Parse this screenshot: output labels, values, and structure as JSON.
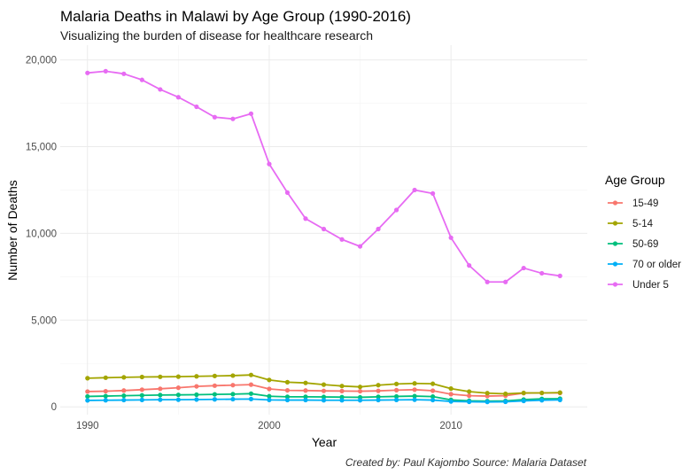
{
  "chart_data": {
    "type": "line",
    "title": "Malaria Deaths in Malawi by Age Group (1990-2016)",
    "subtitle": "Visualizing the burden of disease for healthcare research",
    "xlabel": "Year",
    "ylabel": "Number of Deaths",
    "caption": "Created by: Paul Kajombo Source: Malaria Dataset",
    "legend_title": "Age Group",
    "legend_position": "right",
    "grid": true,
    "xlim": [
      1988.5,
      2017.5
    ],
    "ylim": [
      -450,
      20850
    ],
    "x_ticks": [
      1990,
      2000,
      2010
    ],
    "y_ticks": [
      0,
      5000,
      10000,
      15000,
      20000
    ],
    "y_tick_labels": [
      "0",
      "5,000",
      "10,000",
      "15,000",
      "20,000"
    ],
    "x": [
      1990,
      1991,
      1992,
      1993,
      1994,
      1995,
      1996,
      1997,
      1998,
      1999,
      2000,
      2001,
      2002,
      2003,
      2004,
      2005,
      2006,
      2007,
      2008,
      2009,
      2010,
      2011,
      2012,
      2013,
      2014,
      2015,
      2016
    ],
    "series": [
      {
        "name": "15-49",
        "color": "#F8766D",
        "values": [
          880,
          900,
          940,
          990,
          1040,
          1100,
          1180,
          1220,
          1250,
          1280,
          1030,
          950,
          940,
          920,
          910,
          900,
          920,
          960,
          990,
          930,
          730,
          640,
          620,
          640,
          790,
          800,
          800
        ]
      },
      {
        "name": "5-14",
        "color": "#A3A500",
        "values": [
          1650,
          1680,
          1700,
          1720,
          1730,
          1740,
          1760,
          1780,
          1800,
          1840,
          1550,
          1420,
          1380,
          1280,
          1200,
          1150,
          1250,
          1320,
          1350,
          1330,
          1050,
          880,
          790,
          750,
          800,
          800,
          820
        ]
      },
      {
        "name": "50-69",
        "color": "#00BF7D",
        "values": [
          600,
          620,
          640,
          660,
          680,
          690,
          700,
          720,
          730,
          760,
          610,
          580,
          580,
          570,
          560,
          550,
          580,
          600,
          620,
          590,
          400,
          350,
          330,
          340,
          420,
          460,
          470
        ]
      },
      {
        "name": "70 or older",
        "color": "#00B0F6",
        "values": [
          370,
          380,
          390,
          400,
          410,
          410,
          420,
          430,
          440,
          450,
          400,
          390,
          390,
          380,
          380,
          380,
          390,
          400,
          410,
          390,
          310,
          290,
          280,
          290,
          340,
          380,
          400
        ]
      },
      {
        "name": "Under 5",
        "color": "#E76BF3",
        "values": [
          19250,
          19350,
          19200,
          18850,
          18300,
          17850,
          17300,
          16700,
          16600,
          16900,
          14000,
          12350,
          10850,
          10250,
          9650,
          9250,
          10250,
          11350,
          12500,
          12300,
          9750,
          8150,
          7200,
          7200,
          8000,
          7700,
          7550
        ]
      }
    ]
  }
}
